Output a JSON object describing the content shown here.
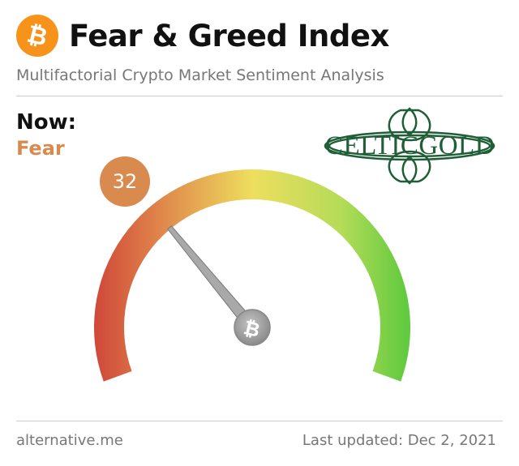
{
  "header": {
    "title": "Fear & Greed Index",
    "subtitle": "Multifactorial Crypto Market Sentiment Analysis",
    "icon": "bitcoin-icon"
  },
  "current": {
    "label": "Now:",
    "classification": "Fear",
    "value": "32"
  },
  "gauge": {
    "min": 0,
    "max": 100,
    "value": 32,
    "center_icon": "bitcoin-icon"
  },
  "logo": {
    "text": "CELTICGOLD"
  },
  "footer": {
    "source": "alternative.me",
    "last_updated": "Last updated: Dec 2, 2021"
  },
  "colors": {
    "accent_fear": "#d98a4e",
    "bitcoin_orange": "#f7931a",
    "gauge_extreme_fear": "#d0473a",
    "gauge_neutral": "#eede5e",
    "gauge_extreme_greed": "#5cc93d",
    "needle": "#a9a9a9",
    "logo_green": "#1f5e37"
  }
}
